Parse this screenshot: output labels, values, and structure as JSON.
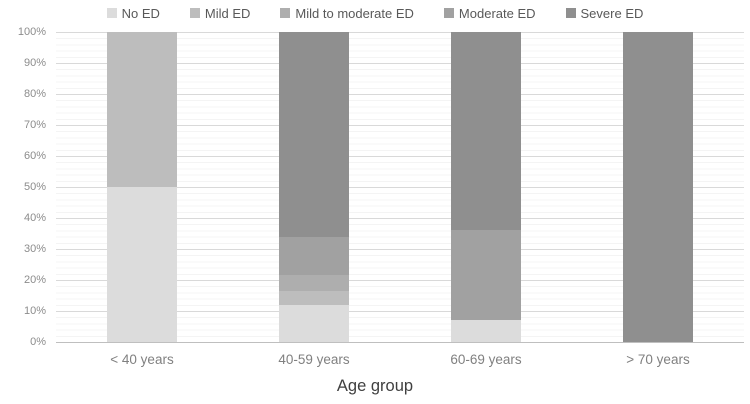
{
  "chart_data": {
    "type": "bar",
    "subtype": "stacked-100-percent-column",
    "title": "",
    "xlabel": "Age group",
    "ylabel": "",
    "ylim": [
      0,
      100
    ],
    "grid": true,
    "legend_position": "top",
    "categories": [
      "< 40 years",
      "40-59 years",
      "60-69 years",
      "> 70 years"
    ],
    "y_ticks": [
      "0%",
      "10%",
      "20%",
      "30%",
      "40%",
      "50%",
      "60%",
      "70%",
      "80%",
      "90%",
      "100%"
    ],
    "series": [
      {
        "name": "No ED",
        "color": "#dcdcdc",
        "values": [
          50,
          12,
          7,
          0
        ]
      },
      {
        "name": "Mild ED",
        "color": "#bdbdbd",
        "values": [
          50,
          4.5,
          0,
          0
        ]
      },
      {
        "name": "Mild to moderate ED",
        "color": "#aeaeae",
        "values": [
          0,
          5,
          0,
          0
        ]
      },
      {
        "name": "Moderate ED",
        "color": "#a1a1a1",
        "values": [
          0,
          12.5,
          29,
          0
        ]
      },
      {
        "name": "Severe ED",
        "color": "#8f8f8f",
        "values": [
          0,
          66,
          64,
          100
        ]
      }
    ]
  }
}
